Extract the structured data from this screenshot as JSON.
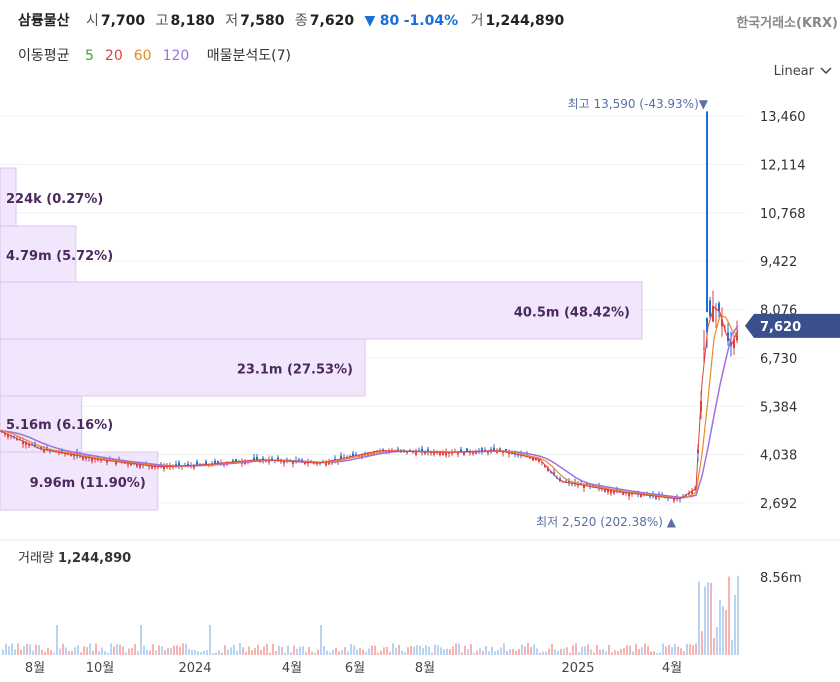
{
  "header": {
    "name": "삼륭물산",
    "open_label": "시",
    "open": "7,700",
    "high_label": "고",
    "high": "8,180",
    "low_label": "저",
    "low": "7,580",
    "close_label": "종",
    "close": "7,620",
    "change_arrow": "▼",
    "change": "80",
    "change_pct": "-1.04%",
    "volume_label": "거",
    "volume": "1,244,890",
    "exchange": "한국거래소(KRX)"
  },
  "moving_average": {
    "label": "이동평균",
    "periods": [
      {
        "value": "5",
        "color": "#3aa53a"
      },
      {
        "value": "20",
        "color": "#e04040"
      },
      {
        "value": "60",
        "color": "#e88a2a"
      },
      {
        "value": "120",
        "color": "#a070e0"
      }
    ],
    "volume_profile_label": "매물분석도(7)"
  },
  "scale_selector": {
    "label": "Linear",
    "icon": "chevron-down-icon"
  },
  "chart_data": {
    "type": "candlestick",
    "y_ticks": [
      "13,460",
      "12,114",
      "10,768",
      "9,422",
      "8,076",
      "6,730",
      "5,384",
      "4,038",
      "2,692"
    ],
    "y_tick_values": [
      13460,
      12114,
      10768,
      9422,
      8076,
      6730,
      5384,
      4038,
      2692
    ],
    "x_ticks": [
      "8월",
      "10월",
      "2024",
      "4월",
      "6월",
      "8월",
      "2025",
      "4월"
    ],
    "current_price": {
      "label": "7,620",
      "value": 7620,
      "color": "#3b4f8c"
    },
    "max_marker": {
      "label": "최고",
      "text": "13,590 (-43.93%)",
      "arrow": "▼",
      "value": 13590
    },
    "min_marker": {
      "label": "최저",
      "text": "2,520 (202.38%)",
      "arrow": "▲",
      "value": 2520
    },
    "volume_profile": [
      {
        "label": "224k (0.27%)",
        "volume": "224k",
        "pct": 0.27
      },
      {
        "label": "4.79m (5.72%)",
        "volume": "4.79m",
        "pct": 5.72
      },
      {
        "label": "40.5m (48.42%)",
        "volume": "40.5m",
        "pct": 48.42
      },
      {
        "label": "23.1m (27.53%)",
        "volume": "23.1m",
        "pct": 27.53
      },
      {
        "label": "5.16m (6.16%)",
        "volume": "5.16m",
        "pct": 6.16
      },
      {
        "label": "9.96m (11.90%)",
        "volume": "9.96m",
        "pct": 11.9
      }
    ],
    "volume_panel": {
      "label": "거래량",
      "value": "1,244,890",
      "tick": "8.56m",
      "tick_value": 8560000
    },
    "colors": {
      "up": "#e04040",
      "down": "#1a6fd6",
      "profile_fill": "#f1e6fb",
      "profile_stroke": "#dcc4f0"
    }
  }
}
